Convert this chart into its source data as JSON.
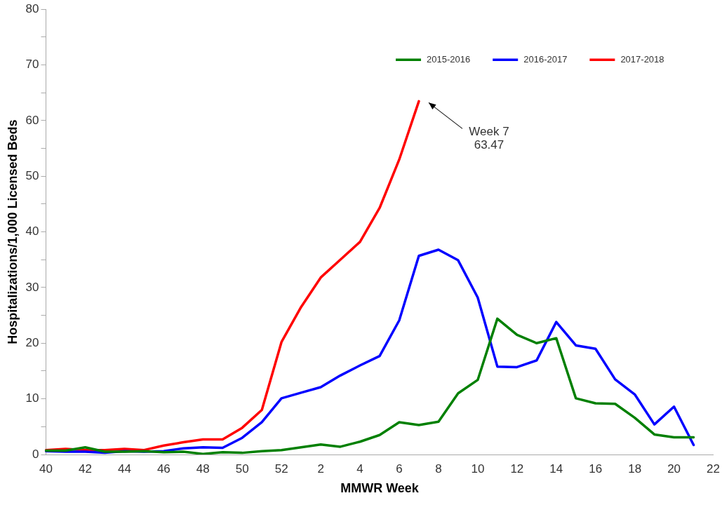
{
  "chart_data": {
    "type": "line",
    "xlabel": "MMWR Week",
    "ylabel": "Hospitalizations/1,000 Licensed Beds",
    "categories": [
      "40",
      null,
      "42",
      null,
      "44",
      null,
      "46",
      null,
      "48",
      null,
      "50",
      null,
      "52",
      null,
      "2",
      null,
      "4",
      null,
      "6",
      null,
      "8",
      null,
      "10",
      null,
      "12",
      null,
      "14",
      null,
      "16",
      null,
      "18",
      null,
      "20",
      null,
      "22"
    ],
    "ylim": [
      0,
      80
    ],
    "yticks": [
      0,
      {
        "value": 5,
        "label": null
      },
      10,
      {
        "value": 15,
        "label": null
      },
      20,
      {
        "value": 25,
        "label": null
      },
      30,
      {
        "value": 35,
        "label": null
      },
      40,
      {
        "value": 45,
        "label": null
      },
      50,
      {
        "value": 55,
        "label": null
      },
      60,
      {
        "value": 65,
        "label": null
      },
      70,
      {
        "value": 75,
        "label": null
      },
      80
    ],
    "grid": false,
    "legend": "top right",
    "marker": "none",
    "line_style": "solid",
    "series": [
      {
        "name": "2015-2016",
        "color": "#008000",
        "values": [
          0.7,
          0.7,
          1.3,
          0.5,
          0.5,
          0.6,
          0.4,
          0.5,
          0.1,
          0.4,
          0.3,
          0.6,
          0.8,
          1.3,
          1.8,
          1.4,
          2.3,
          3.5,
          5.8,
          5.3,
          5.9,
          11.0,
          13.4,
          24.4,
          21.5,
          20.0,
          20.9,
          10.1,
          9.2,
          9.1,
          6.6,
          3.6,
          3.1,
          3.1,
          null
        ]
      },
      {
        "name": "2016-2017",
        "color": "#0000ff",
        "values": [
          0.6,
          0.5,
          0.5,
          0.3,
          0.6,
          0.5,
          0.6,
          1.1,
          1.3,
          1.2,
          3.0,
          5.8,
          10.1,
          11.1,
          12.1,
          14.2,
          16.0,
          17.7,
          24.1,
          35.7,
          36.8,
          34.9,
          28.2,
          15.8,
          15.7,
          16.9,
          23.8,
          19.6,
          19.0,
          13.5,
          10.8,
          5.4,
          8.6,
          1.7,
          null
        ]
      },
      {
        "name": "2017-2018",
        "color": "#ff0000",
        "values": [
          0.8,
          1.0,
          0.8,
          0.8,
          1.0,
          0.8,
          1.6,
          2.2,
          2.7,
          2.7,
          4.8,
          8.0,
          20.2,
          26.5,
          31.8,
          35.0,
          38.2,
          44.3,
          53.0,
          63.47,
          null,
          null,
          null,
          null,
          null,
          null,
          null,
          null,
          null,
          null,
          null,
          null,
          null,
          null,
          null
        ]
      }
    ],
    "annotations": [
      "Week 7\n63.47"
    ]
  }
}
